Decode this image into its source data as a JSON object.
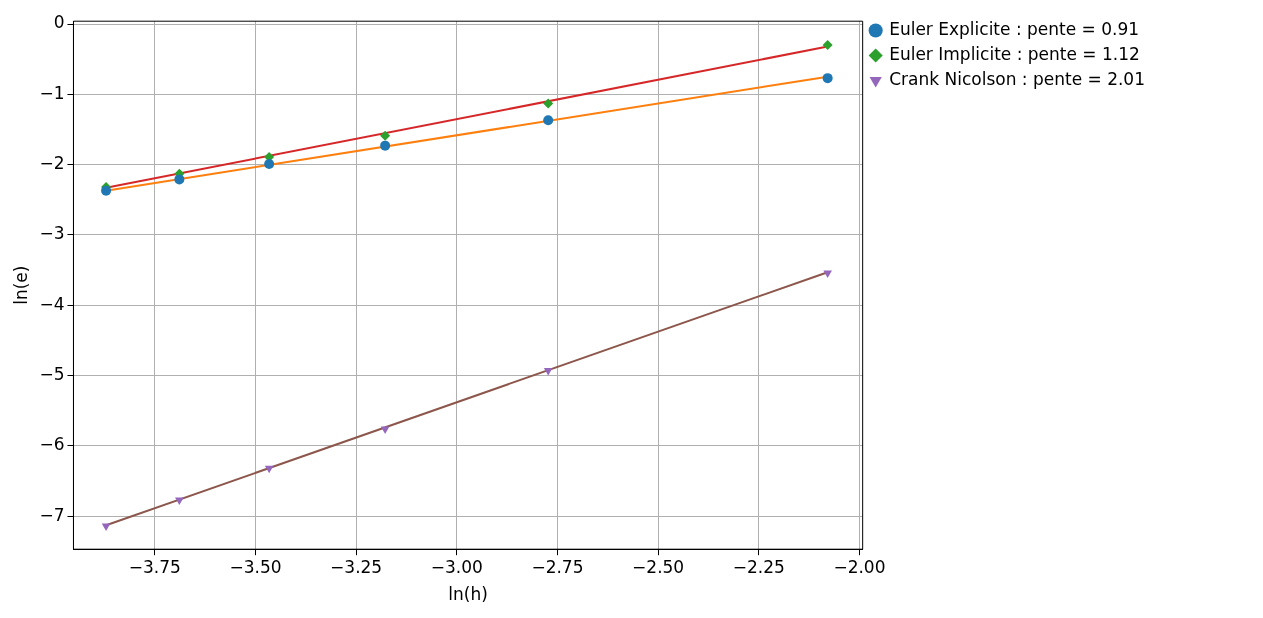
{
  "chart_data": {
    "type": "scatter",
    "xlabel": "ln(h)",
    "ylabel": "ln(e)",
    "xlim": [
      -3.952,
      -1.992
    ],
    "xticks": [
      {
        "value": -3.75,
        "label": "−3.75"
      },
      {
        "value": -3.5,
        "label": "−3.50"
      },
      {
        "value": -3.25,
        "label": "−3.25"
      },
      {
        "value": -3.0,
        "label": "−3.00"
      },
      {
        "value": -2.75,
        "label": "−2.75"
      },
      {
        "value": -2.5,
        "label": "−2.50"
      },
      {
        "value": -2.25,
        "label": "−2.25"
      },
      {
        "value": -2.0,
        "label": "−2.00"
      }
    ],
    "ylim": [
      -7.47,
      0.04
    ],
    "yticks": [
      {
        "value": -7,
        "label": "−7"
      },
      {
        "value": -6,
        "label": "−6"
      },
      {
        "value": -5,
        "label": "−5"
      },
      {
        "value": -4,
        "label": "−4"
      },
      {
        "value": -3,
        "label": "−3"
      },
      {
        "value": -2,
        "label": "−2"
      },
      {
        "value": -1,
        "label": "−1"
      },
      {
        "value": 0,
        "label": "0"
      }
    ],
    "grid": true,
    "legend": "top right",
    "series": [
      {
        "name": "Euler Explicite : pente = 0.91",
        "marker": "circle",
        "color": "#1f77b4",
        "x": [
          -3.871,
          -3.689,
          -3.466,
          -3.178,
          -2.773,
          -2.079
        ],
        "values": [
          -2.37,
          -2.21,
          -1.99,
          -1.73,
          -1.37,
          -0.77
        ]
      },
      {
        "name": "Euler Implicite : pente = 1.12",
        "marker": "diamond",
        "color": "#2ca02c",
        "x": [
          -3.871,
          -3.689,
          -3.466,
          -3.178,
          -2.773,
          -2.079
        ],
        "values": [
          -2.32,
          -2.13,
          -1.89,
          -1.59,
          -1.13,
          -0.3
        ]
      },
      {
        "name": "Crank Nicolson : pente = 2.01",
        "marker": "triangle",
        "color": "#9467bd",
        "x": [
          -3.871,
          -3.689,
          -3.466,
          -3.178,
          -2.773,
          -2.079
        ],
        "values": [
          -7.14,
          -6.77,
          -6.32,
          -5.76,
          -4.93,
          -3.54
        ]
      },
      {
        "type": "line",
        "marker": "none",
        "color": "#ff7f0e",
        "x": [
          -3.871,
          -2.079
        ],
        "values": [
          -2.37,
          -0.75
        ]
      },
      {
        "type": "line",
        "marker": "none",
        "color": "#d62728",
        "x": [
          -3.871,
          -2.079
        ],
        "values": [
          -2.33,
          -0.32
        ]
      },
      {
        "type": "line",
        "marker": "none",
        "color": "#8c564b",
        "x": [
          -3.871,
          -2.079
        ],
        "values": [
          -7.13,
          -3.53
        ]
      }
    ]
  }
}
